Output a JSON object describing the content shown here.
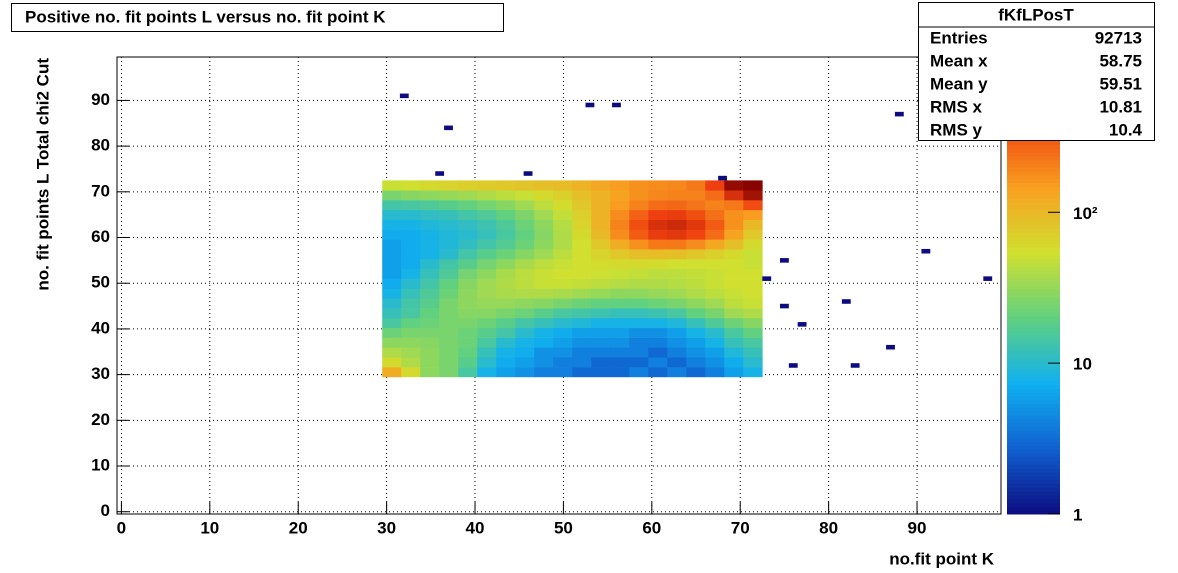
{
  "chart_data": {
    "type": "heatmap",
    "title": "Positive no. fit points L versus no. fit point K",
    "x_label": "no.fit point K",
    "y_label": "no. fit points  L  Total chi2 Cut",
    "xlim": [
      -0.5,
      99.5
    ],
    "ylim": [
      -0.5,
      99.5
    ],
    "xticks": [
      0,
      10,
      20,
      30,
      40,
      50,
      60,
      70,
      80,
      90
    ],
    "yticks": [
      0,
      10,
      20,
      30,
      40,
      50,
      60,
      70,
      80,
      90
    ],
    "grid": true,
    "zlog": true,
    "zlim": [
      1,
      1070
    ],
    "zticks": [
      1,
      10,
      {
        "value": 100,
        "label": "10²"
      }
    ],
    "palette": [
      "#0c0c80",
      "#1060d0",
      "#10b0f0",
      "#60d080",
      "#d0e030",
      "#f8a020",
      "#f04010",
      "#800000"
    ],
    "xbins": [
      29.5,
      31.65,
      33.8,
      35.95,
      38.1,
      40.25,
      42.4,
      44.55,
      46.7,
      48.85,
      51,
      53.15,
      55.3,
      57.45,
      59.6,
      61.75,
      63.9,
      66.05,
      68.2,
      70.35,
      72.5
    ],
    "ybins": [
      29.5,
      31.65,
      33.8,
      35.95,
      38.1,
      40.25,
      42.4,
      44.55,
      46.7,
      48.85,
      51,
      53.15,
      55.3,
      57.45,
      59.6,
      61.75,
      63.9,
      66.05,
      68.2,
      70.35,
      72.5
    ],
    "z": [
      [
        120,
        60,
        30,
        25,
        15,
        8,
        6,
        5,
        4,
        4,
        3,
        3,
        3,
        4,
        3,
        4,
        3,
        4,
        6,
        8
      ],
      [
        60,
        40,
        30,
        25,
        18,
        10,
        7,
        6,
        5,
        4,
        4,
        3,
        3,
        3,
        4,
        3,
        4,
        5,
        7,
        10
      ],
      [
        40,
        35,
        30,
        25,
        20,
        12,
        8,
        7,
        5,
        5,
        4,
        4,
        4,
        4,
        3,
        4,
        5,
        6,
        9,
        12
      ],
      [
        30,
        30,
        28,
        25,
        22,
        15,
        10,
        8,
        7,
        6,
        5,
        5,
        5,
        4,
        4,
        5,
        6,
        8,
        12,
        15
      ],
      [
        22,
        25,
        25,
        25,
        22,
        18,
        14,
        10,
        8,
        7,
        6,
        6,
        6,
        5,
        5,
        6,
        8,
        10,
        15,
        20
      ],
      [
        15,
        20,
        22,
        25,
        25,
        22,
        18,
        14,
        12,
        10,
        9,
        8,
        8,
        8,
        8,
        9,
        12,
        16,
        22,
        28
      ],
      [
        12,
        15,
        20,
        25,
        28,
        28,
        25,
        22,
        18,
        15,
        14,
        13,
        12,
        12,
        13,
        15,
        20,
        25,
        35,
        40
      ],
      [
        10,
        14,
        18,
        25,
        30,
        32,
        32,
        30,
        28,
        25,
        22,
        20,
        20,
        20,
        22,
        25,
        30,
        35,
        45,
        50
      ],
      [
        8,
        12,
        16,
        22,
        30,
        35,
        38,
        40,
        40,
        38,
        35,
        32,
        30,
        30,
        32,
        35,
        40,
        45,
        50,
        55
      ],
      [
        7,
        10,
        14,
        20,
        28,
        35,
        40,
        45,
        50,
        50,
        48,
        45,
        42,
        40,
        40,
        42,
        45,
        50,
        55,
        55
      ],
      [
        6,
        8,
        12,
        16,
        24,
        30,
        38,
        45,
        50,
        55,
        55,
        52,
        50,
        48,
        45,
        45,
        48,
        50,
        55,
        55
      ],
      [
        6,
        7,
        10,
        14,
        18,
        24,
        30,
        38,
        45,
        50,
        55,
        58,
        60,
        60,
        58,
        55,
        55,
        55,
        55,
        50
      ],
      [
        6,
        7,
        8,
        10,
        14,
        18,
        22,
        28,
        35,
        45,
        55,
        65,
        80,
        90,
        95,
        90,
        80,
        70,
        60,
        50
      ],
      [
        6,
        7,
        8,
        9,
        11,
        14,
        17,
        22,
        30,
        40,
        55,
        80,
        120,
        170,
        220,
        220,
        180,
        130,
        90,
        60
      ],
      [
        7,
        7,
        8,
        9,
        10,
        12,
        15,
        20,
        28,
        40,
        60,
        100,
        180,
        300,
        420,
        450,
        380,
        250,
        140,
        80
      ],
      [
        8,
        8,
        9,
        10,
        11,
        13,
        16,
        22,
        30,
        42,
        65,
        110,
        200,
        340,
        500,
        550,
        450,
        300,
        170,
        100
      ],
      [
        10,
        10,
        11,
        12,
        14,
        16,
        20,
        26,
        35,
        48,
        70,
        110,
        180,
        280,
        400,
        420,
        340,
        240,
        170,
        150
      ],
      [
        14,
        15,
        16,
        18,
        20,
        24,
        28,
        35,
        45,
        58,
        80,
        110,
        150,
        200,
        250,
        260,
        230,
        200,
        220,
        350
      ],
      [
        25,
        28,
        30,
        32,
        35,
        40,
        45,
        50,
        60,
        70,
        90,
        110,
        140,
        170,
        190,
        200,
        200,
        250,
        500,
        800
      ],
      [
        50,
        55,
        60,
        65,
        70,
        75,
        80,
        85,
        90,
        95,
        110,
        130,
        150,
        170,
        180,
        190,
        220,
        400,
        900,
        1000
      ]
    ],
    "points": [
      {
        "x": 32,
        "y": 91,
        "z": 1
      },
      {
        "x": 37,
        "y": 84,
        "z": 1
      },
      {
        "x": 36,
        "y": 74,
        "z": 1
      },
      {
        "x": 46,
        "y": 74,
        "z": 1
      },
      {
        "x": 53,
        "y": 89,
        "z": 1
      },
      {
        "x": 56,
        "y": 89,
        "z": 1
      },
      {
        "x": 68,
        "y": 73,
        "z": 1
      },
      {
        "x": 88,
        "y": 87,
        "z": 1
      },
      {
        "x": 91,
        "y": 57,
        "z": 1
      },
      {
        "x": 98,
        "y": 51,
        "z": 1
      },
      {
        "x": 73,
        "y": 51,
        "z": 1
      },
      {
        "x": 75,
        "y": 55,
        "z": 1
      },
      {
        "x": 75,
        "y": 45,
        "z": 1
      },
      {
        "x": 82,
        "y": 46,
        "z": 1
      },
      {
        "x": 77,
        "y": 41,
        "z": 1
      },
      {
        "x": 87,
        "y": 36,
        "z": 1
      },
      {
        "x": 76,
        "y": 32,
        "z": 1
      },
      {
        "x": 83,
        "y": 32,
        "z": 1
      }
    ],
    "stats": {
      "title": "fKfLPosT",
      "rows": [
        [
          "Entries",
          92713
        ],
        [
          "Mean x",
          58.75
        ],
        [
          "Mean y",
          59.51
        ],
        [
          "RMS x",
          10.81
        ],
        [
          "RMS y",
          10.4
        ]
      ]
    }
  }
}
